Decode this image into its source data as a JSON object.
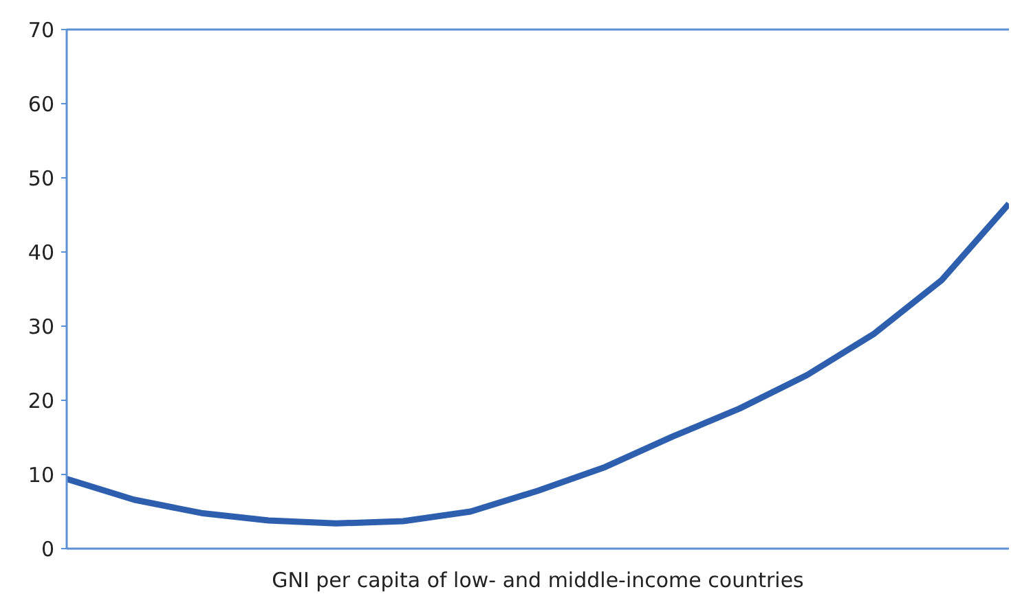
{
  "chart_data": {
    "type": "line",
    "xlabel": "GNI per capita of low- and middle-income countries",
    "categories": [
      null,
      null,
      null,
      null,
      null,
      null,
      null,
      null,
      null,
      null,
      null,
      null,
      null,
      null,
      null
    ],
    "series": [
      {
        "color": "#2e5fae",
        "values": [
          9.4,
          6.6,
          4.8,
          3.8,
          3.4,
          3.7,
          5.0,
          7.8,
          11.0,
          15.1,
          18.9,
          23.4,
          29.0,
          36.2,
          46.5
        ]
      }
    ],
    "ylim": [
      0,
      70
    ],
    "yticks": [
      0,
      10,
      20,
      30,
      40,
      50,
      60,
      70
    ],
    "grid": false,
    "tick_labels": "y",
    "marker": "none",
    "line_style": "solid"
  }
}
